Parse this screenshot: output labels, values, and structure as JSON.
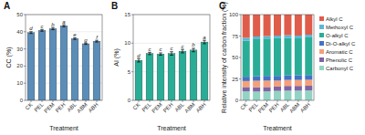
{
  "chart_data": [
    {
      "type": "bar",
      "title": "A",
      "ylabel": "CC (%)",
      "xlabel": "Treatment",
      "categories": [
        "CK",
        "PEL",
        "PEM",
        "PEH",
        "ABL",
        "ABM",
        "ABH"
      ],
      "values": [
        39.5,
        40.8,
        41.8,
        43.5,
        36.0,
        33.0,
        34.5
      ],
      "errors": [
        0.5,
        0.5,
        0.6,
        0.6,
        0.5,
        0.4,
        0.5
      ],
      "annotations": [
        "d",
        "c",
        "b",
        "a",
        "e",
        "g",
        "f"
      ],
      "color": "#5b8db8",
      "ylim": [
        0,
        50
      ],
      "yticks": [
        0,
        10,
        20,
        30,
        40,
        50
      ],
      "grid": true
    },
    {
      "type": "bar",
      "title": "B",
      "ylabel": "AI (%)",
      "xlabel": "Treatment",
      "categories": [
        "CK",
        "PEL",
        "PEM",
        "PEH",
        "ABL",
        "ABM",
        "ABH"
      ],
      "values": [
        7.0,
        8.2,
        8.1,
        8.2,
        8.6,
        8.8,
        10.2
      ],
      "errors": [
        0.3,
        0.2,
        0.2,
        0.3,
        0.3,
        0.3,
        0.3
      ],
      "annotations": [
        "d",
        "c",
        "c",
        "c",
        "c",
        "b",
        "a"
      ],
      "color": "#2aad96",
      "ylim": [
        0,
        15
      ],
      "yticks": [
        0,
        5,
        10,
        15
      ],
      "grid": true
    },
    {
      "type": "bar",
      "title": "C",
      "ylabel": "Relative intensity of carbon fraction (%)",
      "xlabel": "Treatment",
      "categories": [
        "CK",
        "PEL",
        "PEM",
        "PEH",
        "ABL",
        "ABM",
        "ABH"
      ],
      "stacked": true,
      "series": [
        {
          "name": "Carbonyl C",
          "color": "#92d3c4",
          "values": [
            10.5,
            10.3,
            10.5,
            11.0,
            11.3,
            11.3,
            11.5
          ]
        },
        {
          "name": "Phenolic C",
          "color": "#8064a2",
          "values": [
            5.0,
            5.0,
            5.0,
            5.0,
            5.5,
            5.5,
            5.5
          ]
        },
        {
          "name": "Aromatic C",
          "color": "#f4a07a",
          "values": [
            7.0,
            7.5,
            7.5,
            7.0,
            7.0,
            7.0,
            7.0
          ]
        },
        {
          "name": "Di-O-alkyl C",
          "color": "#4472c4",
          "values": [
            5.0,
            5.5,
            5.5,
            5.5,
            5.5,
            5.5,
            5.5
          ]
        },
        {
          "name": "O-alkyl C",
          "color": "#2aad96",
          "values": [
            42.0,
            43.0,
            43.5,
            44.0,
            43.5,
            43.0,
            44.0
          ]
        },
        {
          "name": "Methoxyl C",
          "color": "#5bb8d4",
          "values": [
            3.5,
            3.2,
            3.0,
            3.0,
            3.2,
            3.2,
            3.0
          ]
        },
        {
          "name": "Alkyl C",
          "color": "#e05c4a",
          "values": [
            27.0,
            25.5,
            25.0,
            24.5,
            24.0,
            24.5,
            23.5
          ]
        }
      ],
      "ylim": [
        0,
        100
      ],
      "yticks": [
        0,
        25,
        50,
        75,
        100
      ],
      "grid": false,
      "legend": "right"
    }
  ]
}
